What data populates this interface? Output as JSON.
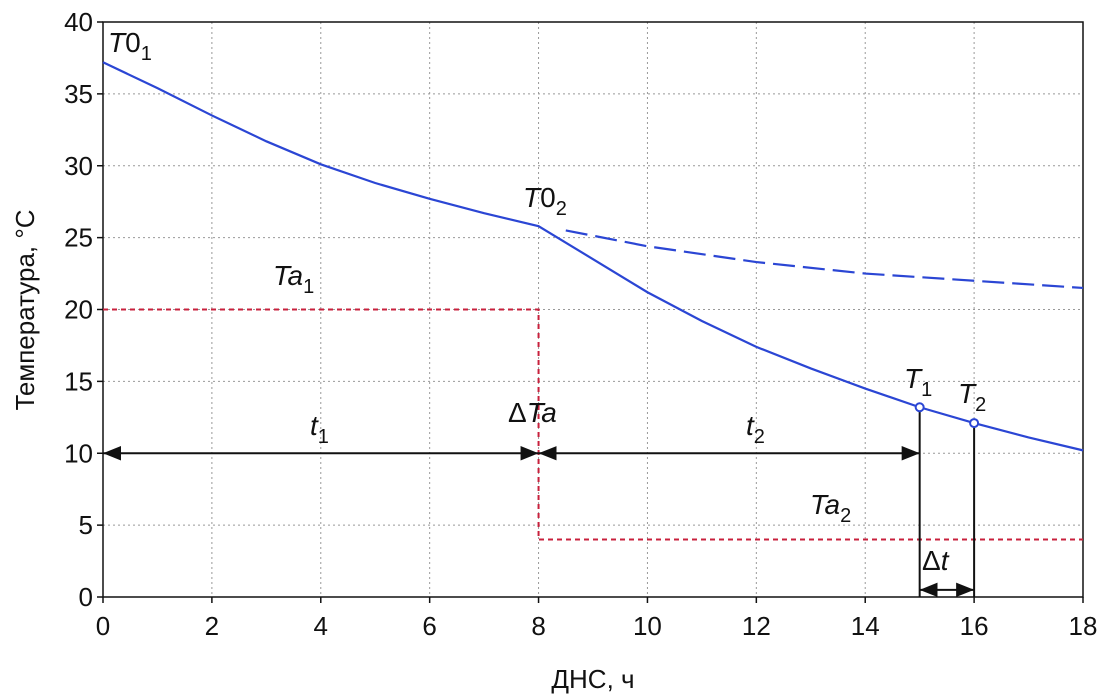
{
  "chart_data": {
    "type": "line",
    "xlabel": "ДНС, ч",
    "ylabel": "Температура, °С",
    "xlim": [
      0,
      18
    ],
    "ylim": [
      0,
      40
    ],
    "xticks": [
      0,
      2,
      4,
      6,
      8,
      10,
      12,
      14,
      16,
      18
    ],
    "yticks": [
      0,
      5,
      10,
      15,
      20,
      25,
      30,
      35,
      40
    ],
    "grid": true,
    "series": [
      {
        "color": "#2b46d4",
        "style": "solid",
        "x": [
          0,
          1,
          2,
          3,
          4,
          5,
          6,
          7,
          8,
          9,
          10,
          11,
          12,
          13,
          14,
          15,
          16,
          17,
          18
        ],
        "values": [
          37.2,
          35.4,
          33.5,
          31.7,
          30.1,
          28.8,
          27.7,
          26.7,
          25.8,
          23.5,
          21.2,
          19.2,
          17.4,
          15.9,
          14.5,
          13.2,
          12.1,
          11.1,
          10.2
        ]
      },
      {
        "color": "#2b46d4",
        "style": "dashed",
        "x": [
          8.5,
          10,
          12,
          14,
          16,
          18
        ],
        "values": [
          25.5,
          24.4,
          23.3,
          22.5,
          22.0,
          21.5
        ]
      },
      {
        "color": "#c8203c",
        "style": "dotted",
        "x": [
          0,
          8,
          8,
          18
        ],
        "values": [
          20,
          20,
          4,
          4
        ]
      }
    ],
    "points": [
      {
        "x": 15,
        "value": 13.2,
        "color": "#2b46d4"
      },
      {
        "x": 16,
        "value": 12.1,
        "color": "#2b46d4"
      }
    ],
    "intervals": [
      {
        "from": 0,
        "to": 8,
        "y": 10
      },
      {
        "from": 8,
        "to": 15,
        "y": 10
      },
      {
        "from": 15,
        "to": 16,
        "y": 0.5
      }
    ],
    "annotations": [
      {
        "main": "T",
        "mid": "0",
        "sub": "1"
      },
      {
        "main": "T",
        "mid": "0",
        "sub": "2"
      },
      {
        "main": "Ta",
        "sub": "1"
      },
      {
        "main": "t",
        "sub": "1"
      },
      {
        "pre": "Δ",
        "main": "Ta"
      },
      {
        "main": "t",
        "sub": "2"
      },
      {
        "main": "T",
        "sub": "1"
      },
      {
        "main": "T",
        "sub": "2"
      },
      {
        "main": "Ta",
        "sub": "2"
      },
      {
        "pre": "Δ",
        "main": "t"
      }
    ]
  }
}
